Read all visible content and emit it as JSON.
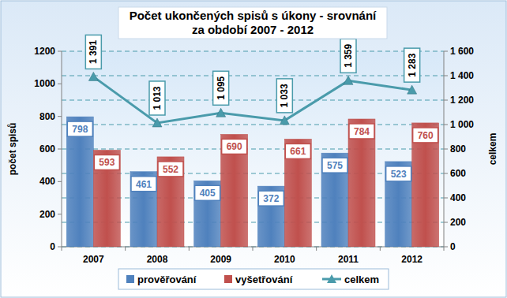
{
  "chart_data": {
    "type": "bar",
    "title": "Počet ukončených spisů s úkony - srovnání\nza období 2007 - 2012",
    "ylabel": "počet spisů",
    "y2label": "celkem",
    "categories": [
      "2007",
      "2008",
      "2009",
      "2010",
      "2011",
      "2012"
    ],
    "series": [
      {
        "name": "prověřování",
        "type": "bar",
        "color": "#4f81bd",
        "values": [
          798,
          461,
          405,
          372,
          575,
          523
        ]
      },
      {
        "name": "vyšetřování",
        "type": "bar",
        "color": "#c0504d",
        "values": [
          593,
          552,
          690,
          661,
          784,
          760
        ]
      },
      {
        "name": "celkem",
        "type": "line",
        "axis": "y2",
        "color": "#4a9bab",
        "marker": "triangle",
        "values": [
          1391,
          1013,
          1095,
          1033,
          1359,
          1283
        ],
        "value_labels": [
          "1 391",
          "1 013",
          "1 095",
          "1 033",
          "1 359",
          "1 283"
        ]
      }
    ],
    "ylim": [
      0,
      1200
    ],
    "yticks": [
      0,
      200,
      400,
      600,
      800,
      1000,
      1200
    ],
    "y2lim": [
      0,
      1600
    ],
    "y2ticks": [
      0,
      200,
      400,
      600,
      800,
      {
        "value": 1000,
        "label": "1 000"
      },
      {
        "value": 1200,
        "label": "1 200"
      },
      {
        "value": 1400,
        "label": "1 400"
      },
      {
        "value": 1600,
        "label": "1 600"
      }
    ],
    "grid": true,
    "legend": "bottom",
    "data_labels": true
  }
}
